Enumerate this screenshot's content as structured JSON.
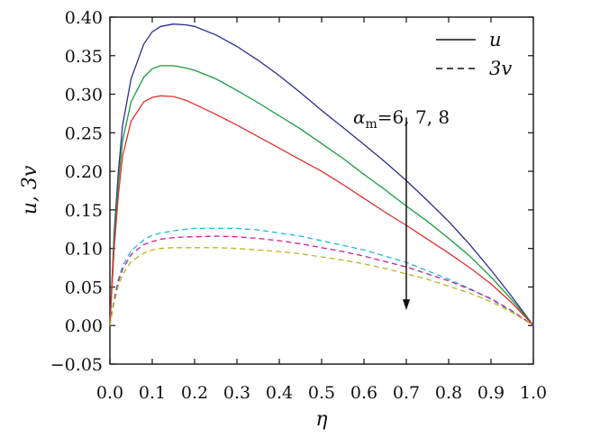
{
  "chart_data": {
    "type": "line",
    "title": "",
    "xlabel": "η",
    "ylabel": "u, 3v",
    "xlim": [
      0.0,
      1.0
    ],
    "ylim": [
      -0.05,
      0.4
    ],
    "x_ticks": [
      "0.0",
      "0.1",
      "0.2",
      "0.3",
      "0.4",
      "0.5",
      "0.6",
      "0.7",
      "0.8",
      "0.9",
      "1.0"
    ],
    "y_ticks": [
      "−0.05",
      "0.00",
      "0.05",
      "0.10",
      "0.15",
      "0.20",
      "0.25",
      "0.30",
      "0.35",
      "0.40"
    ],
    "grid": false,
    "legend": {
      "position": "top-right",
      "entries": [
        {
          "label": "u",
          "style": "solid"
        },
        {
          "label": "3v",
          "style": "dashed"
        }
      ]
    },
    "annotation": {
      "prefix": "α",
      "subscript": "m",
      "text": "=6, 7, 8",
      "arrow_x": 0.7,
      "arrow_from_y": 0.27,
      "arrow_to_y": 0.02
    },
    "x": [
      0.0,
      0.01,
      0.02,
      0.03,
      0.05,
      0.08,
      0.1,
      0.12,
      0.15,
      0.18,
      0.2,
      0.25,
      0.3,
      0.35,
      0.4,
      0.45,
      0.5,
      0.55,
      0.6,
      0.65,
      0.7,
      0.75,
      0.8,
      0.85,
      0.9,
      0.95,
      1.0
    ],
    "series": [
      {
        "style": "solid",
        "color": "#2b2e8f",
        "values": [
          0.0,
          0.12,
          0.2,
          0.26,
          0.32,
          0.365,
          0.381,
          0.388,
          0.391,
          0.39,
          0.388,
          0.377,
          0.362,
          0.344,
          0.324,
          0.302,
          0.279,
          0.257,
          0.235,
          0.212,
          0.188,
          0.162,
          0.135,
          0.105,
          0.072,
          0.037,
          0.0
        ]
      },
      {
        "style": "solid",
        "color": "#1a9c3a",
        "values": [
          0.0,
          0.11,
          0.185,
          0.24,
          0.29,
          0.322,
          0.333,
          0.337,
          0.337,
          0.334,
          0.331,
          0.32,
          0.305,
          0.289,
          0.272,
          0.255,
          0.236,
          0.217,
          0.196,
          0.176,
          0.155,
          0.135,
          0.113,
          0.09,
          0.063,
          0.033,
          0.0
        ]
      },
      {
        "style": "solid",
        "color": "#e0312b",
        "values": [
          0.0,
          0.1,
          0.17,
          0.22,
          0.265,
          0.29,
          0.296,
          0.298,
          0.297,
          0.292,
          0.287,
          0.274,
          0.26,
          0.245,
          0.23,
          0.215,
          0.2,
          0.183,
          0.165,
          0.147,
          0.13,
          0.112,
          0.094,
          0.075,
          0.054,
          0.029,
          0.0
        ]
      },
      {
        "style": "dashed",
        "color": "#22b8d8",
        "values": [
          0.0,
          0.035,
          0.06,
          0.077,
          0.097,
          0.111,
          0.117,
          0.12,
          0.123,
          0.125,
          0.126,
          0.126,
          0.126,
          0.124,
          0.12,
          0.116,
          0.11,
          0.104,
          0.098,
          0.09,
          0.082,
          0.071,
          0.06,
          0.048,
          0.034,
          0.018,
          0.0
        ]
      },
      {
        "style": "dashed",
        "color": "#c8208f",
        "values": [
          0.0,
          0.033,
          0.057,
          0.073,
          0.092,
          0.105,
          0.109,
          0.112,
          0.114,
          0.115,
          0.115,
          0.116,
          0.115,
          0.113,
          0.11,
          0.106,
          0.101,
          0.096,
          0.09,
          0.083,
          0.076,
          0.067,
          0.058,
          0.047,
          0.035,
          0.019,
          0.0
        ]
      },
      {
        "style": "dashed",
        "color": "#b8b71e",
        "values": [
          0.0,
          0.03,
          0.052,
          0.066,
          0.083,
          0.094,
          0.098,
          0.1,
          0.101,
          0.101,
          0.101,
          0.101,
          0.1,
          0.098,
          0.096,
          0.093,
          0.089,
          0.085,
          0.08,
          0.074,
          0.067,
          0.06,
          0.051,
          0.042,
          0.031,
          0.017,
          0.0
        ]
      }
    ]
  }
}
